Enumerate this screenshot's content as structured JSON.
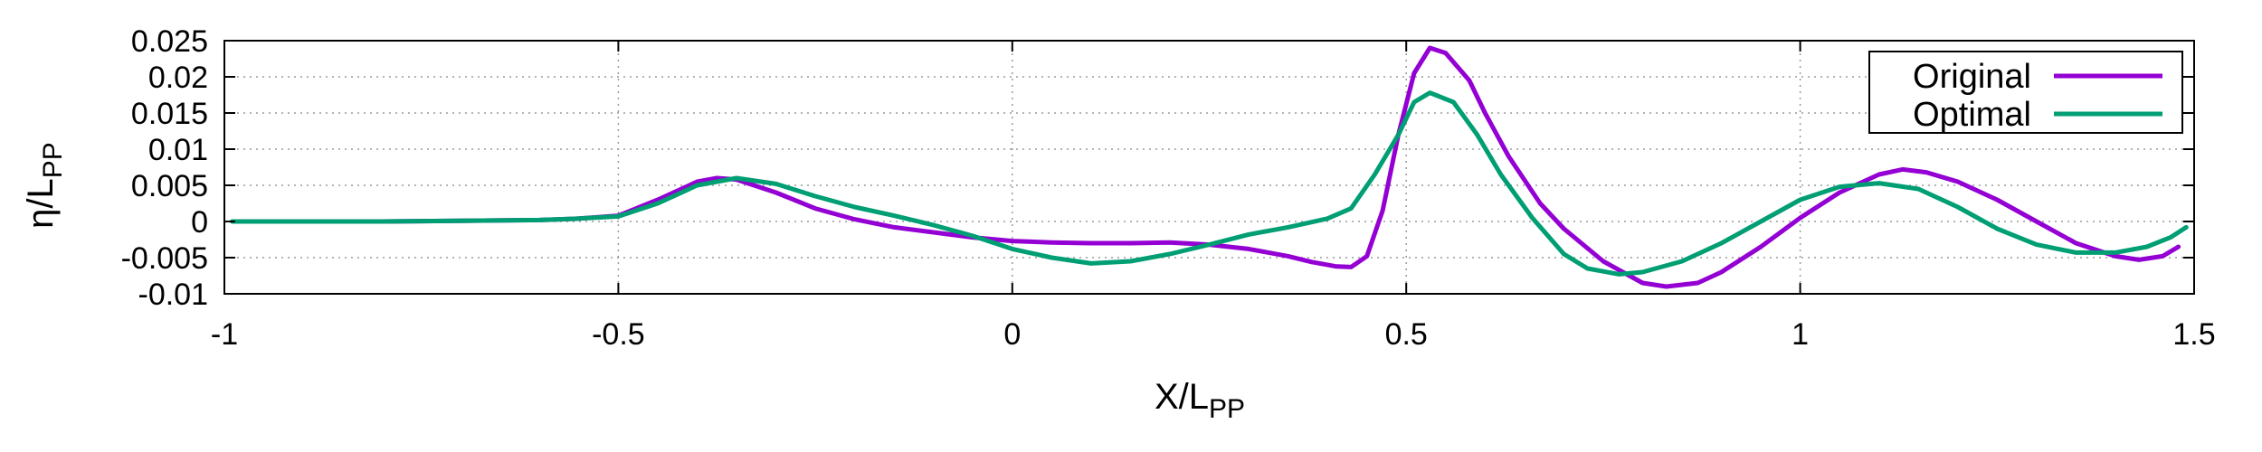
{
  "chart_data": {
    "type": "line",
    "xlabel": {
      "main": "X/L",
      "sub": "PP"
    },
    "ylabel": {
      "main": "η/L",
      "sub": "PP"
    },
    "xlim": [
      -1,
      1.5
    ],
    "ylim": [
      -0.01,
      0.025
    ],
    "xticks": [
      -1,
      -0.5,
      0,
      0.5,
      1,
      1.5
    ],
    "xtick_labels": [
      "-1",
      "-0.5",
      "0",
      "0.5",
      "1",
      "1.5"
    ],
    "yticks": [
      -0.01,
      -0.005,
      0,
      0.005,
      0.01,
      0.015,
      0.02,
      0.025
    ],
    "ytick_labels": [
      "-0.01",
      "-0.005",
      "0",
      "0.005",
      "0.01",
      "0.015",
      "0.02",
      "0.025"
    ],
    "grid": true,
    "legend_position": "top-right",
    "series": [
      {
        "name": "Original",
        "color": "#9400D3",
        "x": [
          -0.99,
          -0.8,
          -0.6,
          -0.55,
          -0.5,
          -0.45,
          -0.4,
          -0.375,
          -0.35,
          -0.3,
          -0.25,
          -0.2,
          -0.15,
          -0.1,
          -0.05,
          0.0,
          0.05,
          0.1,
          0.15,
          0.2,
          0.25,
          0.3,
          0.35,
          0.38,
          0.41,
          0.43,
          0.45,
          0.47,
          0.49,
          0.51,
          0.53,
          0.55,
          0.58,
          0.6,
          0.63,
          0.67,
          0.7,
          0.75,
          0.8,
          0.83,
          0.87,
          0.9,
          0.95,
          1.0,
          1.05,
          1.1,
          1.13,
          1.16,
          1.2,
          1.25,
          1.3,
          1.35,
          1.4,
          1.43,
          1.46,
          1.48
        ],
        "y": [
          0.0,
          0.0,
          0.0002,
          0.0004,
          0.0008,
          0.003,
          0.0055,
          0.006,
          0.0058,
          0.004,
          0.0018,
          0.0003,
          -0.0008,
          -0.0015,
          -0.0022,
          -0.0027,
          -0.0029,
          -0.003,
          -0.003,
          -0.0029,
          -0.0032,
          -0.0038,
          -0.0048,
          -0.0056,
          -0.0062,
          -0.0063,
          -0.0048,
          0.0015,
          0.012,
          0.0205,
          0.024,
          0.0233,
          0.0195,
          0.015,
          0.009,
          0.0025,
          -0.001,
          -0.0055,
          -0.0085,
          -0.009,
          -0.0085,
          -0.007,
          -0.0035,
          0.0005,
          0.004,
          0.0065,
          0.0072,
          0.0068,
          0.0055,
          0.003,
          0.0,
          -0.003,
          -0.0048,
          -0.0053,
          -0.0048,
          -0.0035
        ]
      },
      {
        "name": "Optimal",
        "color": "#009E73",
        "x": [
          -0.99,
          -0.8,
          -0.6,
          -0.55,
          -0.5,
          -0.45,
          -0.4,
          -0.35,
          -0.3,
          -0.25,
          -0.2,
          -0.15,
          -0.1,
          -0.05,
          0.0,
          0.05,
          0.1,
          0.15,
          0.2,
          0.25,
          0.3,
          0.35,
          0.4,
          0.43,
          0.46,
          0.49,
          0.51,
          0.53,
          0.56,
          0.59,
          0.62,
          0.66,
          0.7,
          0.73,
          0.77,
          0.8,
          0.85,
          0.9,
          0.95,
          1.0,
          1.05,
          1.1,
          1.15,
          1.2,
          1.25,
          1.3,
          1.35,
          1.4,
          1.44,
          1.47,
          1.49
        ],
        "y": [
          0.0,
          0.0,
          0.0002,
          0.0004,
          0.0007,
          0.0025,
          0.005,
          0.006,
          0.0052,
          0.0035,
          0.002,
          0.0008,
          -0.0005,
          -0.002,
          -0.0038,
          -0.005,
          -0.0058,
          -0.0055,
          -0.0045,
          -0.0032,
          -0.0018,
          -0.0008,
          0.0004,
          0.0018,
          0.0065,
          0.012,
          0.0165,
          0.0178,
          0.0165,
          0.012,
          0.0065,
          0.0005,
          -0.0045,
          -0.0065,
          -0.0073,
          -0.007,
          -0.0055,
          -0.003,
          0.0,
          0.003,
          0.0048,
          0.0053,
          0.0045,
          0.002,
          -0.001,
          -0.0032,
          -0.0043,
          -0.0043,
          -0.0035,
          -0.0022,
          -0.0008
        ]
      }
    ]
  }
}
